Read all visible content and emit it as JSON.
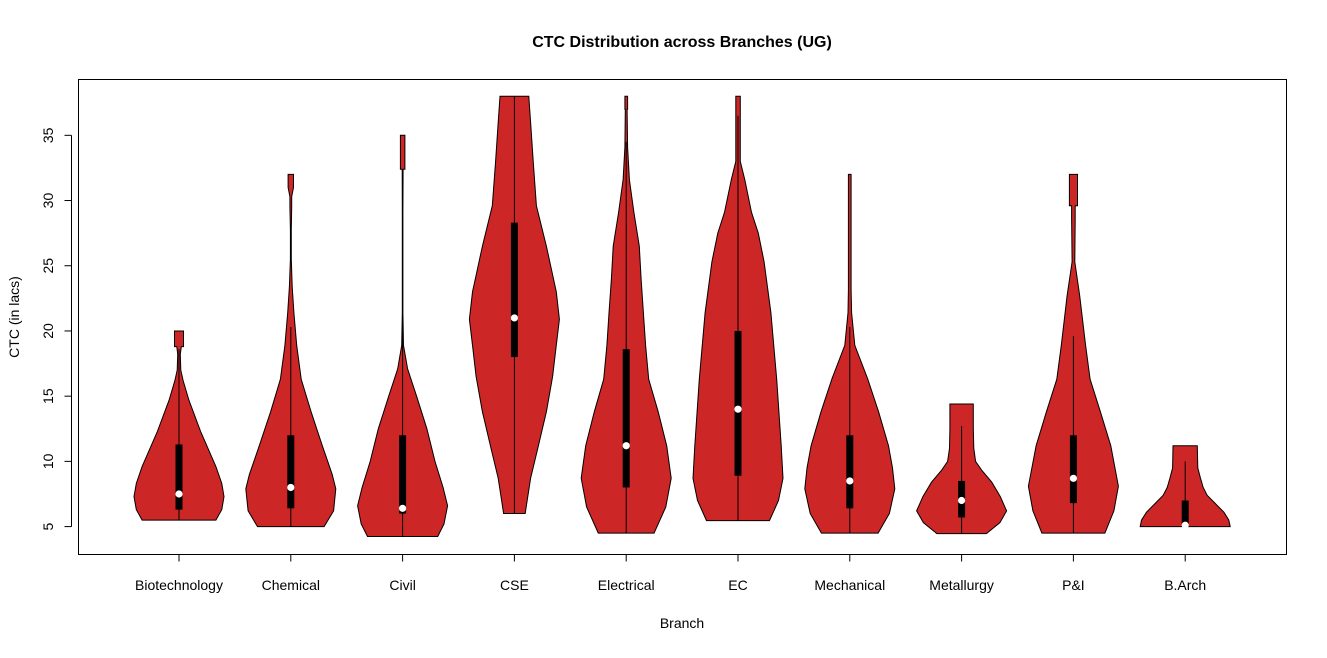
{
  "chart_data": {
    "type": "violin",
    "title": "CTC Distribution across Branches (UG)",
    "xlabel": "Branch",
    "ylabel": "CTC (in lacs)",
    "ylim": [
      2.86,
      39.28
    ],
    "yticks": [
      5,
      10,
      15,
      20,
      25,
      30,
      35
    ],
    "grid": false,
    "colors": {
      "fill": "#CD2626",
      "outline": "#000000",
      "box": "#000000",
      "median": "#FFFFFF"
    },
    "categories": [
      "Biotechnology",
      "Chemical",
      "Civil",
      "CSE",
      "Electrical",
      "EC",
      "Mechanical",
      "Metallurgy",
      "P&I",
      "B.Arch"
    ],
    "violins": [
      {
        "name": "Biotechnology",
        "min": 5.5,
        "max": 20.0,
        "q1": 6.3,
        "median": 7.5,
        "q3": 11.3,
        "whisker_high": 18.6,
        "density": [
          [
            5.5,
            0.82
          ],
          [
            6.3,
            0.95
          ],
          [
            7.3,
            1.0
          ],
          [
            8.3,
            0.95
          ],
          [
            9.6,
            0.82
          ],
          [
            12.3,
            0.48
          ],
          [
            14.7,
            0.22
          ],
          [
            16.2,
            0.09
          ],
          [
            17.0,
            0.04
          ],
          [
            18.2,
            0.03
          ],
          [
            18.8,
            0.05
          ],
          [
            18.8,
            0.1
          ],
          [
            20.0,
            0.1
          ]
        ]
      },
      {
        "name": "Chemical",
        "min": 5.0,
        "max": 32.0,
        "q1": 6.4,
        "median": 8.0,
        "q3": 12.0,
        "whisker_high": 20.3,
        "density": [
          [
            5.0,
            0.74
          ],
          [
            6.2,
            0.95
          ],
          [
            7.9,
            1.0
          ],
          [
            9.0,
            0.92
          ],
          [
            11.2,
            0.7
          ],
          [
            13.8,
            0.45
          ],
          [
            16.3,
            0.23
          ],
          [
            18.9,
            0.13
          ],
          [
            21.4,
            0.07
          ],
          [
            23.4,
            0.03
          ],
          [
            25.5,
            0.01
          ],
          [
            27.8,
            0.01
          ],
          [
            29.5,
            0.02
          ],
          [
            30.3,
            0.02
          ],
          [
            31.0,
            0.06
          ],
          [
            32.0,
            0.06
          ]
        ]
      },
      {
        "name": "Civil",
        "min": 4.24,
        "max": 35.0,
        "q1": 6.0,
        "median": 6.4,
        "q3": 12.0,
        "whisker_high": 21.2,
        "density": [
          [
            4.24,
            0.78
          ],
          [
            5.2,
            0.92
          ],
          [
            6.6,
            1.0
          ],
          [
            8.0,
            0.9
          ],
          [
            10.0,
            0.72
          ],
          [
            12.5,
            0.54
          ],
          [
            15.0,
            0.31
          ],
          [
            17.1,
            0.11
          ],
          [
            18.9,
            0.02
          ],
          [
            21.4,
            0.006
          ],
          [
            29.1,
            0.006
          ],
          [
            32.4,
            0.01
          ],
          [
            32.4,
            0.05
          ],
          [
            35.0,
            0.05
          ]
        ]
      },
      {
        "name": "CSE",
        "min": 6.0,
        "max": 38.0,
        "q1": 18.0,
        "median": 21.0,
        "q3": 28.3,
        "whisker_high": 38.0,
        "density": [
          [
            6.0,
            0.24
          ],
          [
            8.7,
            0.36
          ],
          [
            11.0,
            0.52
          ],
          [
            13.8,
            0.71
          ],
          [
            16.5,
            0.85
          ],
          [
            18.9,
            0.93
          ],
          [
            20.9,
            1.0
          ],
          [
            23.0,
            0.93
          ],
          [
            26.5,
            0.71
          ],
          [
            29.6,
            0.49
          ],
          [
            32.9,
            0.42
          ],
          [
            36.0,
            0.36
          ],
          [
            38.0,
            0.32
          ]
        ]
      },
      {
        "name": "Electrical",
        "min": 4.5,
        "max": 38.0,
        "q1": 8.0,
        "median": 11.2,
        "q3": 18.6,
        "whisker_high": 34.5,
        "density": [
          [
            4.5,
            0.62
          ],
          [
            6.5,
            0.88
          ],
          [
            8.7,
            1.0
          ],
          [
            11.2,
            0.9
          ],
          [
            13.8,
            0.71
          ],
          [
            16.3,
            0.5
          ],
          [
            18.9,
            0.43
          ],
          [
            21.5,
            0.38
          ],
          [
            24.0,
            0.33
          ],
          [
            26.5,
            0.29
          ],
          [
            29.1,
            0.17
          ],
          [
            31.6,
            0.07
          ],
          [
            34.1,
            0.03
          ],
          [
            37.0,
            0.02
          ],
          [
            37.0,
            0.03
          ],
          [
            38.0,
            0.03
          ]
        ]
      },
      {
        "name": "EC",
        "min": 5.46,
        "max": 38.0,
        "q1": 8.9,
        "median": 14.0,
        "q3": 20.0,
        "whisker_high": 36.5,
        "density": [
          [
            5.46,
            0.7
          ],
          [
            7.0,
            0.9
          ],
          [
            8.7,
            1.0
          ],
          [
            11.2,
            0.96
          ],
          [
            16.3,
            0.86
          ],
          [
            21.4,
            0.73
          ],
          [
            25.3,
            0.58
          ],
          [
            27.5,
            0.45
          ],
          [
            29.1,
            0.3
          ],
          [
            31.6,
            0.15
          ],
          [
            33.0,
            0.05
          ],
          [
            38.0,
            0.05
          ]
        ]
      },
      {
        "name": "Mechanical",
        "min": 4.5,
        "max": 32.0,
        "q1": 6.4,
        "median": 8.5,
        "q3": 12.0,
        "whisker_high": 20.3,
        "density": [
          [
            4.5,
            0.63
          ],
          [
            6.0,
            0.88
          ],
          [
            7.9,
            1.0
          ],
          [
            9.5,
            0.95
          ],
          [
            11.2,
            0.86
          ],
          [
            13.8,
            0.64
          ],
          [
            16.3,
            0.4
          ],
          [
            18.9,
            0.11
          ],
          [
            21.4,
            0.04
          ],
          [
            23.2,
            0.03
          ],
          [
            29.0,
            0.03
          ],
          [
            32.0,
            0.03
          ]
        ]
      },
      {
        "name": "Metallurgy",
        "min": 4.46,
        "max": 14.4,
        "q1": 5.7,
        "median": 7.0,
        "q3": 8.5,
        "whisker_high": 12.7,
        "density": [
          [
            4.46,
            0.55
          ],
          [
            5.3,
            0.85
          ],
          [
            6.2,
            1.0
          ],
          [
            7.3,
            0.86
          ],
          [
            8.4,
            0.67
          ],
          [
            9.3,
            0.45
          ],
          [
            10.0,
            0.31
          ],
          [
            11.0,
            0.27
          ],
          [
            12.5,
            0.26
          ],
          [
            14.4,
            0.26
          ]
        ]
      },
      {
        "name": "P&I",
        "min": 4.5,
        "max": 32.0,
        "q1": 6.8,
        "median": 8.7,
        "q3": 12.0,
        "whisker_high": 19.6,
        "density": [
          [
            4.5,
            0.7
          ],
          [
            6.2,
            0.9
          ],
          [
            8.1,
            1.0
          ],
          [
            11.2,
            0.83
          ],
          [
            13.8,
            0.6
          ],
          [
            16.3,
            0.37
          ],
          [
            18.9,
            0.27
          ],
          [
            22.7,
            0.14
          ],
          [
            25.3,
            0.03
          ],
          [
            28.6,
            0.04
          ],
          [
            29.6,
            0.04
          ],
          [
            29.6,
            0.09
          ],
          [
            32.0,
            0.09
          ]
        ]
      },
      {
        "name": "B.Arch",
        "min": 5.0,
        "max": 11.2,
        "q1": 5.0,
        "median": 5.1,
        "q3": 7.0,
        "whisker_high": 10.0,
        "density": [
          [
            5.0,
            1.0
          ],
          [
            5.5,
            0.97
          ],
          [
            6.1,
            0.86
          ],
          [
            6.8,
            0.66
          ],
          [
            7.4,
            0.49
          ],
          [
            8.0,
            0.4
          ],
          [
            8.7,
            0.34
          ],
          [
            9.5,
            0.28
          ],
          [
            11.2,
            0.27
          ]
        ]
      }
    ]
  }
}
